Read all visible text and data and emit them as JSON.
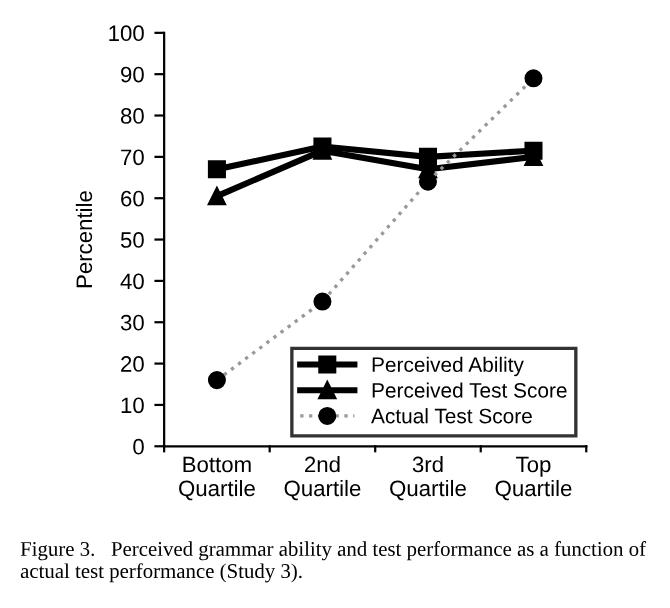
{
  "chart_data": {
    "type": "line",
    "ylabel": "Percentile",
    "categories": [
      "Bottom\nQuartile",
      "2nd\nQuartile",
      "3rd\nQuartile",
      "Top\nQuartile"
    ],
    "series": [
      {
        "name": "Perceived Ability",
        "color": "#000000",
        "marker": "square",
        "line_style": "solid",
        "values": [
          67,
          72.5,
          70,
          71.5
        ]
      },
      {
        "name": "Perceived Test Score",
        "color": "#000000",
        "marker": "triangle",
        "line_style": "solid",
        "values": [
          60.5,
          71.5,
          67,
          70
        ]
      },
      {
        "name": "Actual Test Score",
        "color": "#999999",
        "marker": "circle",
        "line_style": "dotted",
        "values": [
          16,
          35,
          64,
          89
        ]
      }
    ],
    "ylim": [
      0,
      100
    ],
    "yticks": [
      0,
      10,
      20,
      30,
      40,
      50,
      60,
      70,
      80,
      90,
      100
    ],
    "grid": false,
    "legend": "bottom right",
    "annotations": [
      "Figure 3.   Perceived grammar ability and test performance as a function of actual test performance (Study 3)."
    ]
  }
}
